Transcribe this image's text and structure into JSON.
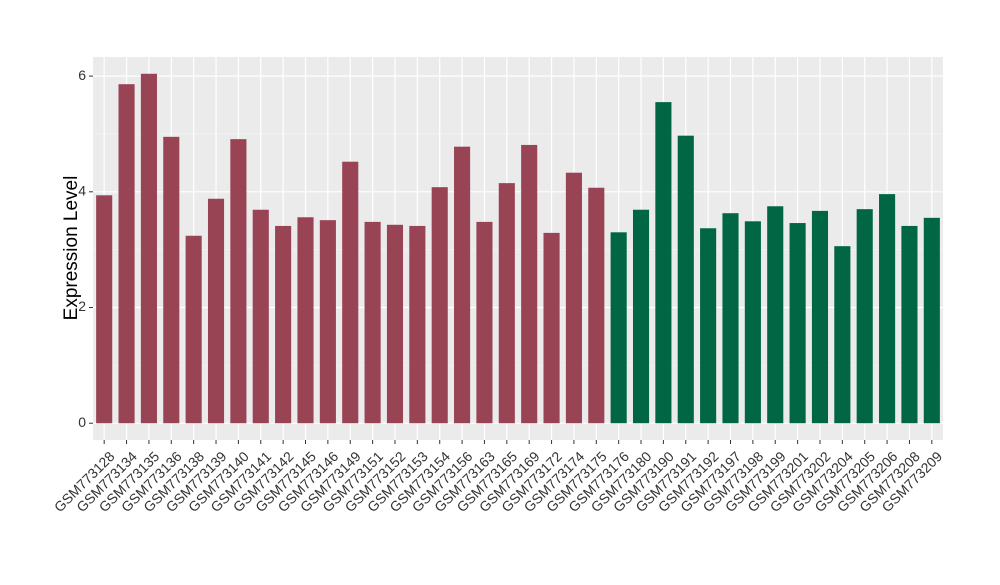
{
  "chart_data": {
    "type": "bar",
    "y_label": "Expression Level",
    "categories": [
      "GSM773128",
      "GSM773134",
      "GSM773135",
      "GSM773136",
      "GSM773138",
      "GSM773139",
      "GSM773140",
      "GSM773141",
      "GSM773142",
      "GSM773145",
      "GSM773146",
      "GSM773149",
      "GSM773151",
      "GSM773152",
      "GSM773153",
      "GSM773154",
      "GSM773156",
      "GSM773163",
      "GSM773165",
      "GSM773169",
      "GSM773172",
      "GSM773174",
      "GSM773175",
      "GSM773176",
      "GSM773180",
      "GSM773190",
      "GSM773191",
      "GSM773192",
      "GSM773197",
      "GSM773198",
      "GSM773199",
      "GSM773201",
      "GSM773202",
      "GSM773204",
      "GSM773205",
      "GSM773206",
      "GSM773208",
      "GSM773209"
    ],
    "values": [
      3.94,
      5.86,
      6.04,
      4.95,
      3.24,
      3.88,
      4.91,
      3.69,
      3.41,
      3.56,
      3.51,
      4.52,
      3.48,
      3.43,
      3.41,
      4.08,
      4.78,
      3.48,
      4.15,
      4.81,
      3.29,
      4.33,
      4.07,
      3.3,
      3.69,
      5.55,
      4.97,
      3.37,
      3.63,
      3.49,
      3.75,
      3.46,
      3.67,
      3.06,
      3.7,
      3.96,
      3.41,
      3.55
    ],
    "colors": [
      "#994455",
      "#994455",
      "#994455",
      "#994455",
      "#994455",
      "#994455",
      "#994455",
      "#994455",
      "#994455",
      "#994455",
      "#994455",
      "#994455",
      "#994455",
      "#994455",
      "#994455",
      "#994455",
      "#994455",
      "#994455",
      "#994455",
      "#994455",
      "#994455",
      "#994455",
      "#994455",
      "#006644",
      "#006644",
      "#006644",
      "#006644",
      "#006644",
      "#006644",
      "#006644",
      "#006644",
      "#006644",
      "#006644",
      "#006644",
      "#006644",
      "#006644",
      "#006644",
      "#006644"
    ],
    "ylim": [
      -0.29,
      6.33
    ],
    "yticks": [
      0,
      2,
      4,
      6
    ],
    "minor_yticks": [
      1,
      3,
      5
    ],
    "grid": true
  }
}
